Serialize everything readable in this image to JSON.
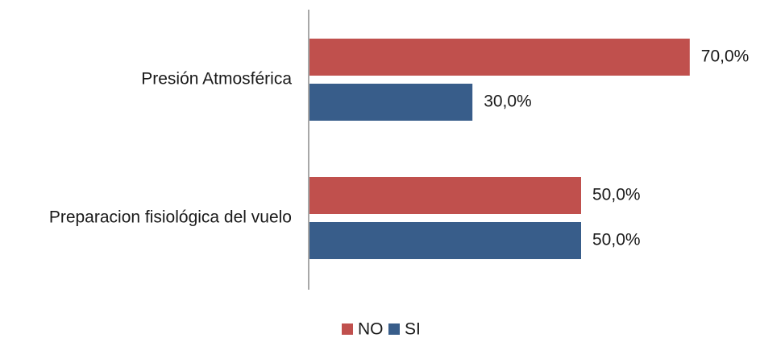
{
  "chart_data": {
    "type": "bar",
    "orientation": "horizontal",
    "title": "",
    "xlabel": "",
    "ylabel": "",
    "categories": [
      "Presión Atmosférica",
      "Preparacion fisiológica del vuelo"
    ],
    "series": [
      {
        "name": "NO",
        "color": "#C0504D",
        "values": [
          70.0,
          50.0
        ],
        "labels": [
          "70,0%",
          "50,0%"
        ]
      },
      {
        "name": "SI",
        "color": "#385D8A",
        "values": [
          30.0,
          50.0
        ],
        "labels": [
          "30,0%",
          "50,0%"
        ]
      }
    ],
    "xlim": [
      0,
      100
    ],
    "grid": false,
    "legend": {
      "position": "bottom"
    }
  }
}
